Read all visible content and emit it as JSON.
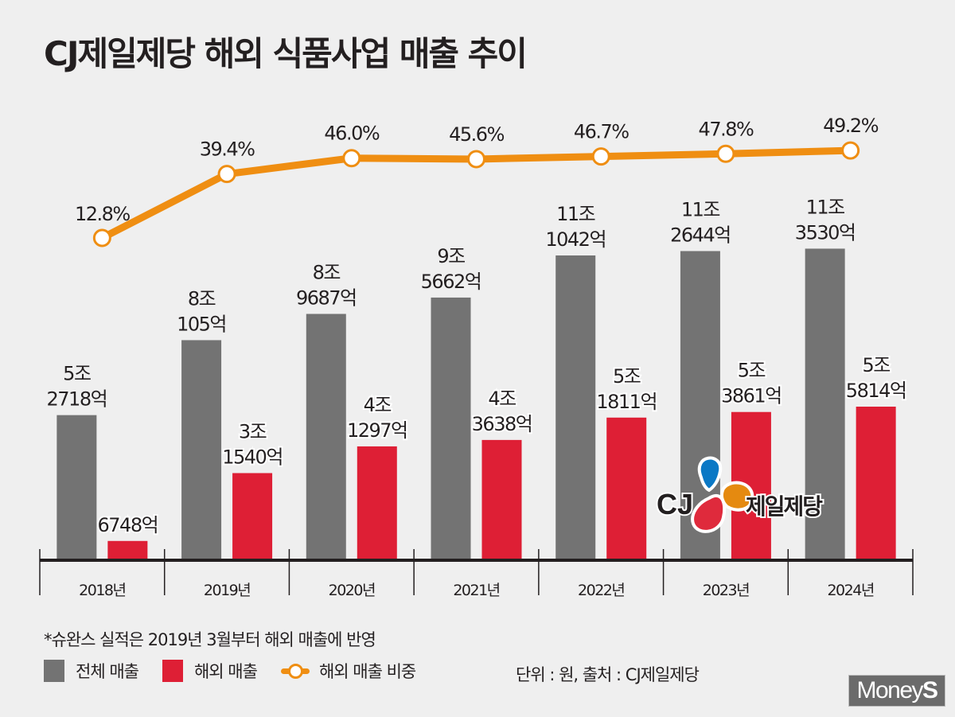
{
  "title": "CJ제일제당 해외 식품사업 매출 추이",
  "footnote": "*슈완스 실적은 2019년 3월부터 해외 매출에 반영",
  "legend": {
    "total": "전체 매출",
    "overseas": "해외 매출",
    "share": "해외 매출 비중"
  },
  "source": "단위 : 원, 출처 : CJ제일제당",
  "watermark": {
    "main": "Money",
    "accent": "S"
  },
  "logo": {
    "brand": "CJ",
    "name": "제일제당"
  },
  "colors": {
    "total": "#737373",
    "overseas": "#de1f35",
    "share": "#ef8e12",
    "background": "#efefef"
  },
  "chart_data": {
    "type": "bar",
    "title": "CJ제일제당 해외 식품사업 매출 추이",
    "xlabel": "",
    "ylabel": "",
    "unit": "원 (조 = trillion KRW)",
    "categories": [
      "2018년",
      "2019년",
      "2020년",
      "2021년",
      "2022년",
      "2023년",
      "2024년"
    ],
    "series": [
      {
        "name": "전체 매출",
        "type": "bar",
        "values_trillion_krw": [
          5.2718,
          8.0105,
          8.9687,
          9.5662,
          11.1042,
          11.2644,
          11.353
        ],
        "labels": [
          [
            "5조",
            "2718억"
          ],
          [
            "8조",
            "105억"
          ],
          [
            "8조",
            "9687억"
          ],
          [
            "9조",
            "5662억"
          ],
          [
            "11조",
            "1042억"
          ],
          [
            "11조",
            "2644억"
          ],
          [
            "11조",
            "3530억"
          ]
        ]
      },
      {
        "name": "해외 매출",
        "type": "bar",
        "values_trillion_krw": [
          0.6748,
          3.154,
          4.1297,
          4.3638,
          5.1811,
          5.3861,
          5.5814
        ],
        "labels": [
          [
            "6748억"
          ],
          [
            "3조",
            "1540억"
          ],
          [
            "4조",
            "1297억"
          ],
          [
            "4조",
            "3638억"
          ],
          [
            "5조",
            "1811억"
          ],
          [
            "5조",
            "3861억"
          ],
          [
            "5조",
            "5814억"
          ]
        ]
      },
      {
        "name": "해외 매출 비중",
        "type": "line",
        "values_percent": [
          12.8,
          39.4,
          46.0,
          45.6,
          46.7,
          47.8,
          49.2
        ],
        "labels": [
          "12.8%",
          "39.4%",
          "46.0%",
          "45.6%",
          "46.7%",
          "47.8%",
          "49.2%"
        ]
      }
    ],
    "grid": false,
    "legend_position": "bottom-left"
  }
}
